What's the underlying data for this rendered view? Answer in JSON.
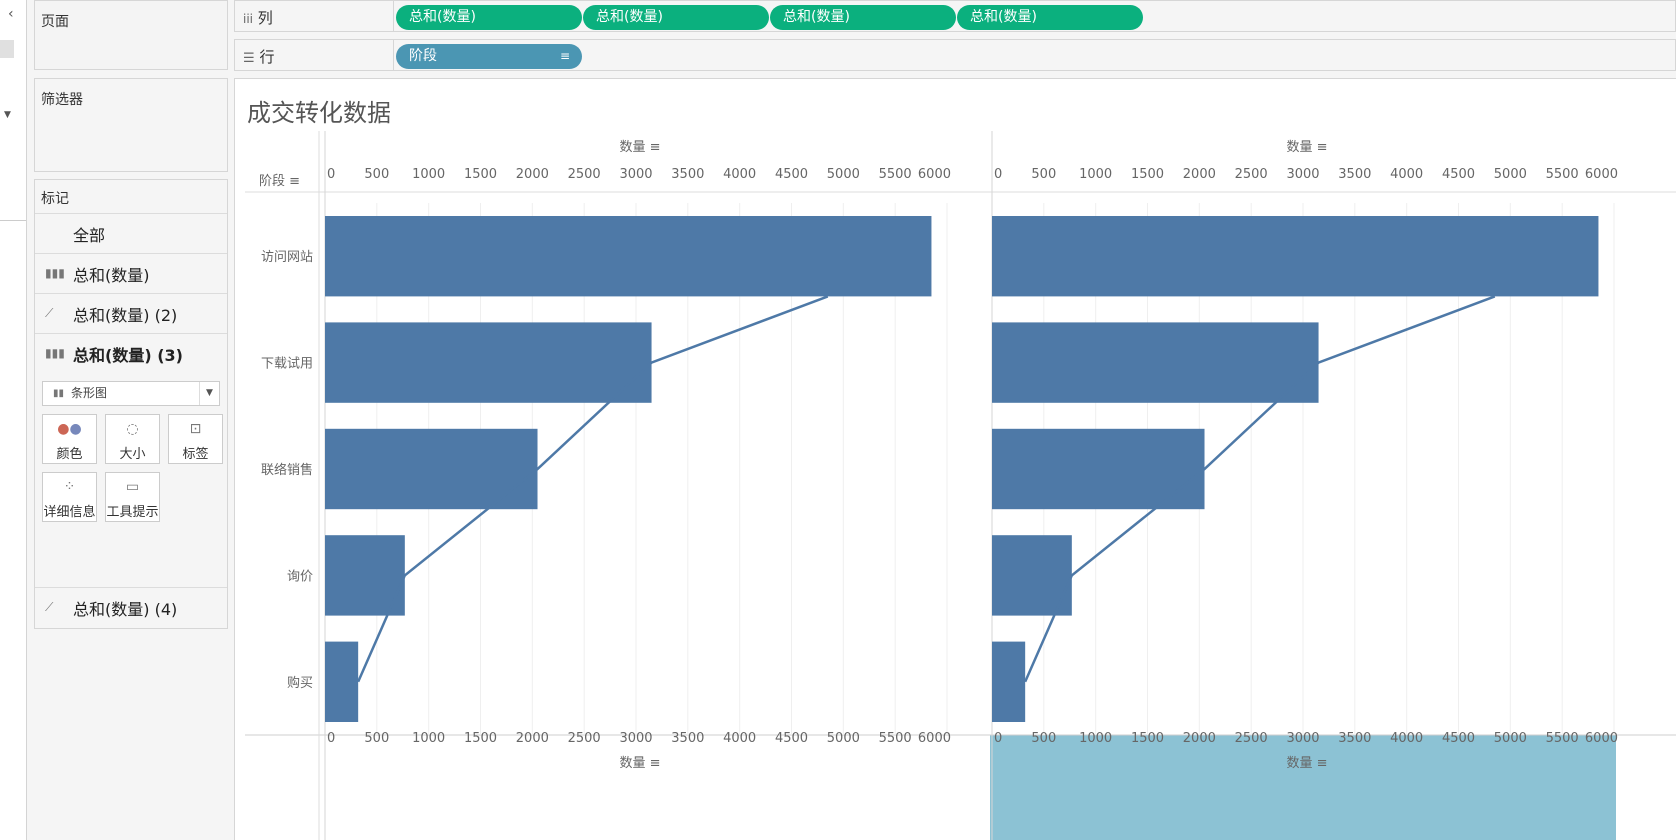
{
  "panels": {
    "pages_title": "页面",
    "filters_title": "筛选器",
    "marks_title": "标记",
    "marks_rows": [
      {
        "label": "全部",
        "icon": "none"
      },
      {
        "label": "总和(数量)",
        "icon": "bar-chart-icon"
      },
      {
        "label": "总和(数量) (2)",
        "icon": "line-chart-icon"
      },
      {
        "label": "总和(数量) (3)",
        "icon": "bar-chart-icon"
      }
    ],
    "mark_type": "条形图",
    "mark_buttons": [
      "颜色",
      "大小",
      "标签",
      "详细信息",
      "工具提示"
    ],
    "marks_row_last": "总和(数量) (4)"
  },
  "shelves": {
    "columns_label": "列",
    "rows_label": "行",
    "column_pills": [
      "总和(数量)",
      "总和(数量)",
      "总和(数量)",
      "总和(数量)"
    ],
    "row_pill": "阶段"
  },
  "view": {
    "title": "成交转化数据"
  },
  "colors": {
    "bar": "#4e79a7",
    "pill_green": "#0bb07e",
    "pill_blue": "#4b96b3",
    "highlight_axis": "#8cc2d4"
  },
  "chart_data": {
    "type": "bar",
    "row_header": "阶段",
    "axis_title": "数量",
    "xlim": [
      0,
      6000
    ],
    "ticks": [
      0,
      500,
      1000,
      1500,
      2000,
      2500,
      3000,
      3500,
      4000,
      4500,
      5000,
      5500,
      6000
    ],
    "categories": [
      "访问网站",
      "下载试用",
      "联络销售",
      "询价",
      "购买"
    ],
    "values": [
      5850,
      3150,
      2050,
      770,
      320
    ],
    "line_values": [
      4850,
      3150,
      2050,
      770,
      320
    ]
  }
}
